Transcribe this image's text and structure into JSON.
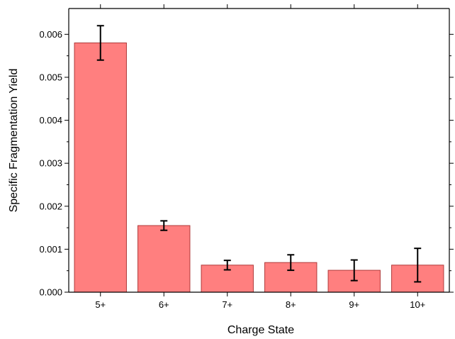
{
  "chart_data": {
    "type": "bar",
    "title": "",
    "xlabel": "Charge State",
    "ylabel": "Specific Fragmentation Yield",
    "categories": [
      "5+",
      "6+",
      "7+",
      "8+",
      "9+",
      "10+"
    ],
    "values": [
      0.0058,
      0.00155,
      0.00063,
      0.00069,
      0.00051,
      0.00063
    ],
    "errors": [
      0.0004,
      0.00011,
      0.00011,
      0.00018,
      0.00024,
      0.00039
    ],
    "ylim": [
      0,
      0.0066
    ],
    "yticks": [
      "0.000",
      "0.001",
      "0.002",
      "0.003",
      "0.004",
      "0.005",
      "0.006"
    ],
    "grid": false,
    "bar_color": "#ff7f7f",
    "bar_edge_color": "#b03a3a"
  }
}
